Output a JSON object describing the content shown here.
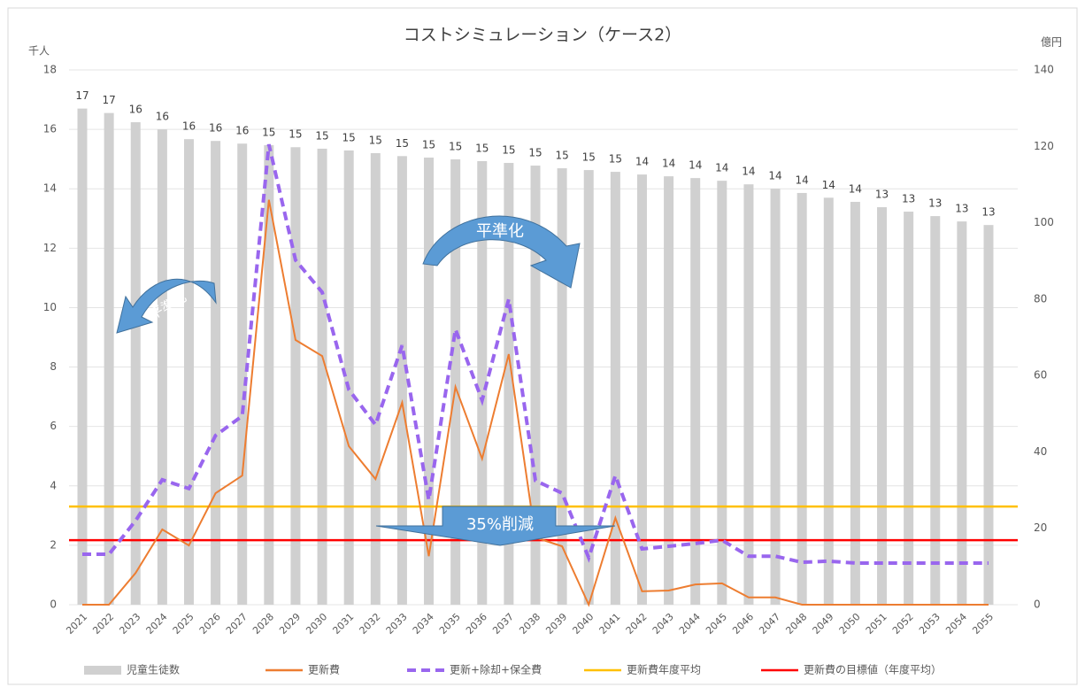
{
  "chart_data": {
    "type": "bar-line",
    "title": "コストシミュレーション（ケース2）",
    "y_label": "千人",
    "y2_label": "億円",
    "categories": [
      "2021",
      "2022",
      "2023",
      "2024",
      "2025",
      "2026",
      "2027",
      "2028",
      "2029",
      "2030",
      "2031",
      "2032",
      "2033",
      "2034",
      "2035",
      "2036",
      "2037",
      "2038",
      "2039",
      "2040",
      "2041",
      "2042",
      "2043",
      "2044",
      "2045",
      "2046",
      "2047",
      "2048",
      "2049",
      "2050",
      "2051",
      "2052",
      "2053",
      "2054",
      "2055"
    ],
    "series": [
      {
        "name": "児童生徒数",
        "type": "bar",
        "axis": "y",
        "color": "#d0d0d0",
        "values": [
          16.7,
          16.55,
          16.24,
          16.0,
          15.67,
          15.61,
          15.52,
          15.47,
          15.4,
          15.35,
          15.29,
          15.2,
          15.1,
          15.05,
          14.99,
          14.93,
          14.87,
          14.78,
          14.69,
          14.63,
          14.57,
          14.48,
          14.42,
          14.36,
          14.27,
          14.15,
          14.0,
          13.86,
          13.7,
          13.56,
          13.38,
          13.23,
          13.08,
          12.9,
          12.78
        ],
        "value_labels": [
          "17",
          "17",
          "16",
          "16",
          "16",
          "16",
          "16",
          "15",
          "15",
          "15",
          "15",
          "15",
          "15",
          "15",
          "15",
          "15",
          "15",
          "15",
          "15",
          "15",
          "15",
          "14",
          "14",
          "14",
          "14",
          "14",
          "14",
          "14",
          "14",
          "14",
          "13",
          "13",
          "13",
          "13",
          "13"
        ]
      },
      {
        "name": "更新費",
        "type": "line",
        "axis": "y2",
        "color": "#ed7d31",
        "line_style": "solid",
        "values": [
          0,
          0,
          8.3,
          19.7,
          15.5,
          29.2,
          33.8,
          106,
          69.3,
          65.1,
          41.5,
          32.9,
          52.9,
          12.7,
          57,
          38.2,
          65.6,
          17.6,
          15.3,
          0,
          22.7,
          3.5,
          3.7,
          5.3,
          5.6,
          1.9,
          1.9,
          0,
          0,
          0,
          0,
          0,
          0,
          0,
          0
        ]
      },
      {
        "name": "更新+除却+保全費",
        "type": "line",
        "axis": "y2",
        "color": "#9966ee",
        "line_style": "dashed",
        "values": [
          13.2,
          13.2,
          22,
          32.7,
          30.4,
          44.3,
          49.4,
          120.5,
          90.2,
          81.8,
          56.3,
          47.1,
          67.9,
          27.4,
          72.1,
          53.5,
          80,
          32.5,
          29.2,
          12.3,
          33.8,
          14.6,
          15.3,
          16,
          16.9,
          12.7,
          12.7,
          11.1,
          11.4,
          10.9,
          10.9,
          10.9,
          10.9,
          10.9,
          10.9
        ]
      }
    ],
    "reference_lines": [
      {
        "name": "更新費年度平均",
        "axis": "y2",
        "color": "#ffc000",
        "value": 25.7
      },
      {
        "name": "更新費の目標値（年度平均）",
        "axis": "y2",
        "color": "#ff0000",
        "value": 16.9
      }
    ],
    "annotations": [
      "平準化",
      "平準化",
      "35%削減"
    ],
    "ylim": [
      0,
      18
    ],
    "yticks": [
      0,
      2,
      4,
      6,
      8,
      10,
      12,
      14,
      16,
      18
    ],
    "y2lim": [
      0,
      140
    ],
    "y2ticks": [
      0,
      20,
      40,
      60,
      80,
      100,
      120,
      140
    ],
    "grid": true
  }
}
